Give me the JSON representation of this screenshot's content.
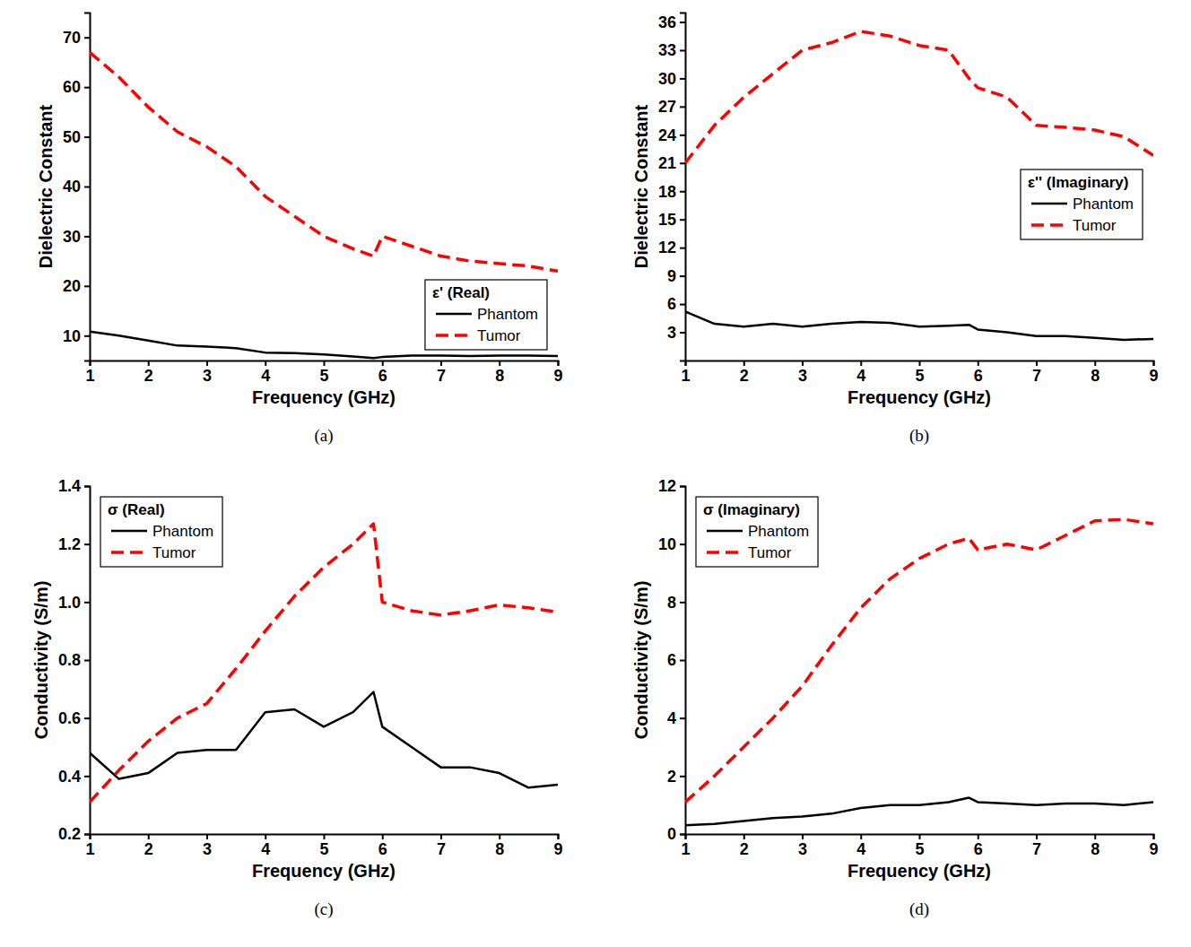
{
  "chart_data": [
    {
      "type": "line",
      "caption": "(a)",
      "x_label": "Frequency (GHz)",
      "y_label": "Dielectric Constant",
      "legend_title": "ε' (Real)",
      "legend": "lower right",
      "x": [
        1,
        1.5,
        2,
        2.5,
        3,
        3.5,
        4,
        4.5,
        5,
        5.5,
        5.85,
        6,
        6.5,
        7,
        7.5,
        8,
        8.5,
        9
      ],
      "xlim": [
        1,
        9
      ],
      "xticks": [
        1,
        2,
        3,
        4,
        5,
        6,
        7,
        8,
        9
      ],
      "ylim": [
        5,
        75
      ],
      "yticks": [
        10,
        20,
        30,
        40,
        50,
        60,
        70
      ],
      "series": [
        {
          "name": "Phantom",
          "color": "#000000",
          "line_style": "solid",
          "values": [
            10.8,
            10,
            9,
            8,
            7.8,
            7.5,
            6.6,
            6.5,
            6.2,
            5.8,
            5.5,
            5.7,
            6,
            6,
            5.9,
            6,
            6,
            5.9
          ]
        },
        {
          "name": "Tumor",
          "color": "#ff0000",
          "line_style": "dashed",
          "values": [
            67,
            62,
            56,
            51,
            48,
            44,
            38,
            34,
            30,
            27.5,
            26,
            30,
            28,
            26,
            25,
            24.5,
            24,
            23
          ]
        }
      ]
    },
    {
      "type": "line",
      "caption": "(b)",
      "x_label": "Frequency (GHz)",
      "y_label": "Dielectric Constant",
      "legend_title": "ε'' (Imaginary)",
      "legend": "right",
      "x": [
        1,
        1.5,
        2,
        2.5,
        3,
        3.5,
        4,
        4.5,
        5,
        5.5,
        5.85,
        6,
        6.5,
        7,
        7.5,
        8,
        8.5,
        9
      ],
      "xlim": [
        1,
        9
      ],
      "xticks": [
        1,
        2,
        3,
        4,
        5,
        6,
        7,
        8,
        9
      ],
      "ylim": [
        0,
        37
      ],
      "yticks": [
        3,
        6,
        9,
        12,
        15,
        18,
        21,
        24,
        27,
        30,
        33,
        36
      ],
      "series": [
        {
          "name": "Phantom",
          "color": "#000000",
          "line_style": "solid",
          "values": [
            5.2,
            3.9,
            3.6,
            3.9,
            3.6,
            3.9,
            4.1,
            4,
            3.6,
            3.7,
            3.8,
            3.3,
            3,
            2.6,
            2.6,
            2.4,
            2.2,
            2.3
          ]
        },
        {
          "name": "Tumor",
          "color": "#ff0000",
          "line_style": "dashed",
          "values": [
            21,
            25,
            28,
            30.5,
            33,
            33.8,
            35,
            34.5,
            33.5,
            33,
            30,
            29,
            28,
            25,
            24.8,
            24.5,
            23.8,
            21.8
          ]
        }
      ]
    },
    {
      "type": "line",
      "caption": "(c)",
      "x_label": "Frequency (GHz)",
      "y_label": "Conductivity (S/m)",
      "legend_title": "σ (Real)",
      "legend": "upper left",
      "x": [
        1,
        1.5,
        2,
        2.5,
        3,
        3.5,
        4,
        4.5,
        5,
        5.5,
        5.85,
        6,
        6.5,
        7,
        7.5,
        8,
        8.5,
        9
      ],
      "xlim": [
        1,
        9
      ],
      "xticks": [
        1,
        2,
        3,
        4,
        5,
        6,
        7,
        8,
        9
      ],
      "ylim": [
        0.2,
        1.4
      ],
      "yticks": [
        0.2,
        0.4,
        0.6,
        0.8,
        {
          "value": 1,
          "label": "1.0"
        },
        1.2,
        1.4
      ],
      "series": [
        {
          "name": "Phantom",
          "color": "#000000",
          "line_style": "solid",
          "values": [
            0.48,
            0.39,
            0.41,
            0.48,
            0.49,
            0.49,
            0.62,
            0.63,
            0.57,
            0.62,
            0.69,
            0.57,
            0.5,
            0.43,
            0.43,
            0.41,
            0.36,
            0.37
          ]
        },
        {
          "name": "Tumor",
          "color": "#ff0000",
          "line_style": "dashed",
          "values": [
            0.31,
            0.42,
            0.52,
            0.6,
            0.65,
            0.77,
            0.9,
            1.02,
            1.12,
            1.2,
            1.27,
            1,
            0.97,
            0.955,
            0.97,
            0.99,
            0.98,
            0.965
          ]
        }
      ]
    },
    {
      "type": "line",
      "caption": "(d)",
      "x_label": "Frequency (GHz)",
      "y_label": "Conductivity (S/m)",
      "legend_title": "σ (Imaginary)",
      "legend": "upper left",
      "x": [
        1,
        1.5,
        2,
        2.5,
        3,
        3.5,
        4,
        4.5,
        5,
        5.5,
        5.85,
        6,
        6.5,
        7,
        7.5,
        8,
        8.5,
        9
      ],
      "xlim": [
        1,
        9
      ],
      "xticks": [
        1,
        2,
        3,
        4,
        5,
        6,
        7,
        8,
        9
      ],
      "ylim": [
        0,
        12
      ],
      "yticks": [
        0,
        2,
        4,
        6,
        8,
        10,
        12
      ],
      "series": [
        {
          "name": "Phantom",
          "color": "#000000",
          "line_style": "solid",
          "values": [
            0.3,
            0.35,
            0.45,
            0.55,
            0.6,
            0.7,
            0.9,
            1,
            1,
            1.1,
            1.25,
            1.1,
            1.05,
            1,
            1.05,
            1.05,
            1,
            1.1
          ]
        },
        {
          "name": "Tumor",
          "color": "#ff0000",
          "line_style": "dashed",
          "values": [
            1.1,
            2,
            3,
            4,
            5.1,
            6.5,
            7.8,
            8.8,
            9.5,
            10,
            10.2,
            9.8,
            10,
            9.8,
            10.3,
            10.8,
            10.85,
            10.7
          ]
        }
      ]
    }
  ]
}
